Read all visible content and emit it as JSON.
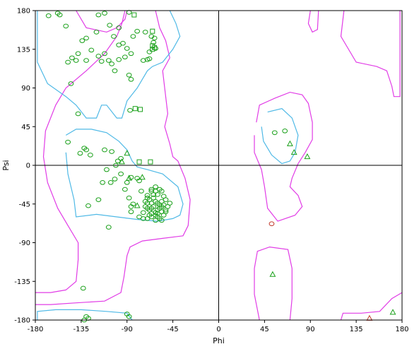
{
  "chart_data": {
    "type": "scatter",
    "title": "",
    "xlabel": "Phi",
    "ylabel": "Psi",
    "xlim": [
      -180,
      180
    ],
    "ylim": [
      -180,
      180
    ],
    "xticks": [
      -180,
      -135,
      -90,
      -45,
      0,
      45,
      90,
      135,
      180
    ],
    "yticks": [
      -180,
      -135,
      -90,
      -45,
      0,
      45,
      90,
      135,
      180
    ],
    "zero_lines": true,
    "colors": {
      "favored_contour": "#4fb9e6",
      "allowed_contour": "#e13ce6",
      "general": "#1aa01a",
      "outlier": "#c0392b",
      "axis": "#000000"
    },
    "contours": {
      "favored": [
        [
          [
            -178,
            180
          ],
          [
            -178,
            120
          ],
          [
            -168,
            95
          ],
          [
            -150,
            80
          ],
          [
            -140,
            70
          ],
          [
            -130,
            55
          ],
          [
            -120,
            55
          ],
          [
            -115,
            70
          ],
          [
            -110,
            70
          ],
          [
            -100,
            55
          ],
          [
            -95,
            55
          ],
          [
            -90,
            75
          ],
          [
            -80,
            90
          ],
          [
            -75,
            100
          ],
          [
            -70,
            110
          ],
          [
            -65,
            115
          ],
          [
            -55,
            120
          ],
          [
            -45,
            135
          ],
          [
            -38,
            150
          ],
          [
            -42,
            165
          ],
          [
            -48,
            180
          ]
        ],
        [
          [
            -150,
            35
          ],
          [
            -140,
            42
          ],
          [
            -125,
            42
          ],
          [
            -110,
            38
          ],
          [
            -98,
            28
          ],
          [
            -90,
            18
          ],
          [
            -85,
            5
          ],
          [
            -80,
            -2
          ],
          [
            -70,
            -5
          ],
          [
            -55,
            -10
          ],
          [
            -40,
            -25
          ],
          [
            -35,
            -45
          ],
          [
            -38,
            -58
          ],
          [
            -45,
            -62
          ],
          [
            -60,
            -65
          ],
          [
            -80,
            -63
          ],
          [
            -100,
            -60
          ],
          [
            -120,
            -57
          ],
          [
            -140,
            -60
          ],
          [
            -142,
            -40
          ],
          [
            -148,
            -10
          ],
          [
            -150,
            15
          ]
        ],
        [
          [
            -178,
            -180
          ],
          [
            -178,
            -170
          ],
          [
            -160,
            -168
          ],
          [
            -135,
            -168
          ],
          [
            -110,
            -170
          ],
          [
            -90,
            -172
          ],
          [
            -85,
            -180
          ]
        ],
        [
          [
            48,
            62
          ],
          [
            62,
            66
          ],
          [
            72,
            55
          ],
          [
            78,
            35
          ],
          [
            75,
            15
          ],
          [
            70,
            5
          ],
          [
            62,
            2
          ],
          [
            52,
            12
          ],
          [
            44,
            28
          ],
          [
            42,
            45
          ]
        ]
      ],
      "allowed": [
        [
          [
            -140,
            180
          ],
          [
            -130,
            160
          ],
          [
            -110,
            155
          ],
          [
            -100,
            160
          ],
          [
            -92,
            170
          ],
          [
            -90,
            180
          ]
        ],
        [
          [
            -180,
            -148
          ],
          [
            -165,
            -148
          ],
          [
            -150,
            -145
          ],
          [
            -140,
            -135
          ],
          [
            -138,
            -110
          ],
          [
            -138,
            -90
          ],
          [
            -148,
            -70
          ],
          [
            -158,
            -50
          ],
          [
            -168,
            -20
          ],
          [
            -172,
            10
          ],
          [
            -170,
            40
          ],
          [
            -160,
            70
          ],
          [
            -150,
            90
          ],
          [
            -130,
            110
          ],
          [
            -112,
            130
          ],
          [
            -100,
            150
          ],
          [
            -95,
            165
          ],
          [
            -92,
            180
          ]
        ],
        [
          [
            -62,
            180
          ],
          [
            -58,
            160
          ],
          [
            -52,
            145
          ],
          [
            -48,
            125
          ],
          [
            -55,
            110
          ],
          [
            -52,
            80
          ],
          [
            -50,
            60
          ],
          [
            -53,
            45
          ],
          [
            -48,
            25
          ],
          [
            -45,
            10
          ],
          [
            -40,
            5
          ],
          [
            -33,
            -15
          ],
          [
            -28,
            -40
          ],
          [
            -30,
            -70
          ],
          [
            -35,
            -82
          ],
          [
            -55,
            -85
          ],
          [
            -75,
            -88
          ],
          [
            -87,
            -95
          ],
          [
            -90,
            -105
          ],
          [
            -93,
            -130
          ],
          [
            -96,
            -148
          ],
          [
            -112,
            -158
          ],
          [
            -140,
            -160
          ],
          [
            -165,
            -162
          ],
          [
            -180,
            -162
          ]
        ],
        [
          [
            37,
            50
          ],
          [
            40,
            70
          ],
          [
            55,
            78
          ],
          [
            70,
            85
          ],
          [
            82,
            82
          ],
          [
            88,
            72
          ],
          [
            92,
            50
          ],
          [
            92,
            30
          ],
          [
            85,
            15
          ],
          [
            78,
            2
          ],
          [
            72,
            -15
          ],
          [
            70,
            -25
          ],
          [
            78,
            -35
          ],
          [
            82,
            -48
          ],
          [
            75,
            -58
          ],
          [
            58,
            -65
          ],
          [
            48,
            -50
          ],
          [
            45,
            -25
          ],
          [
            42,
            -5
          ],
          [
            35,
            15
          ],
          [
            35,
            35
          ]
        ],
        [
          [
            40,
            -180
          ],
          [
            35,
            -150
          ],
          [
            35,
            -120
          ],
          [
            38,
            -100
          ],
          [
            50,
            -95
          ],
          [
            68,
            -98
          ],
          [
            72,
            -120
          ],
          [
            72,
            -155
          ],
          [
            70,
            -180
          ]
        ],
        [
          [
            90,
            180
          ],
          [
            88,
            165
          ],
          [
            92,
            155
          ],
          [
            97,
            158
          ],
          [
            98,
            180
          ]
        ],
        [
          [
            123,
            180
          ],
          [
            120,
            150
          ],
          [
            135,
            120
          ],
          [
            155,
            115
          ],
          [
            165,
            110
          ],
          [
            170,
            92
          ],
          [
            172,
            80
          ],
          [
            178,
            80
          ],
          [
            178,
            180
          ]
        ],
        [
          [
            120,
            -180
          ],
          [
            122,
            -172
          ],
          [
            140,
            -172
          ],
          [
            158,
            -170
          ],
          [
            170,
            -155
          ],
          [
            180,
            -148
          ]
        ]
      ]
    },
    "series": [
      {
        "name": "",
        "marker": "circle",
        "color": "#1aa01a",
        "points": [
          [
            -158,
            177
          ],
          [
            -156,
            175
          ],
          [
            -167,
            174
          ],
          [
            -150,
            162
          ],
          [
            -118,
            175
          ],
          [
            -112,
            177
          ],
          [
            -98,
            160
          ],
          [
            -88,
            178
          ],
          [
            -72,
            155
          ],
          [
            -80,
            156
          ],
          [
            -66,
            150
          ],
          [
            -63,
            148
          ],
          [
            -64,
            143
          ],
          [
            -62,
            136
          ],
          [
            -68,
            132
          ],
          [
            -68,
            124
          ],
          [
            -70,
            123
          ],
          [
            -74,
            122
          ],
          [
            -92,
            126
          ],
          [
            -105,
            118
          ],
          [
            -108,
            122
          ],
          [
            -112,
            130
          ],
          [
            -118,
            127
          ],
          [
            -125,
            134
          ],
          [
            -138,
            130
          ],
          [
            -134,
            145
          ],
          [
            -130,
            148
          ],
          [
            -120,
            155
          ],
          [
            -107,
            163
          ],
          [
            -103,
            150
          ],
          [
            -98,
            140
          ],
          [
            -94,
            142
          ],
          [
            -90,
            136
          ],
          [
            -84,
            150
          ],
          [
            -86,
            130
          ],
          [
            -88,
            105
          ],
          [
            -86,
            100
          ],
          [
            -98,
            123
          ],
          [
            -102,
            110
          ],
          [
            -115,
            121
          ],
          [
            -130,
            122
          ],
          [
            -140,
            122
          ],
          [
            -144,
            125
          ],
          [
            -148,
            120
          ],
          [
            -138,
            60
          ],
          [
            -145,
            95
          ],
          [
            -148,
            27
          ],
          [
            -136,
            14
          ],
          [
            -132,
            20
          ],
          [
            -130,
            18
          ],
          [
            -126,
            12
          ],
          [
            -112,
            18
          ],
          [
            -105,
            16
          ],
          [
            -99,
            5
          ],
          [
            -101,
            0
          ],
          [
            -96,
            8
          ],
          [
            -110,
            -5
          ],
          [
            -114,
            -20
          ],
          [
            -118,
            -40
          ],
          [
            -128,
            -47
          ],
          [
            -106,
            -20
          ],
          [
            -102,
            -16
          ],
          [
            -96,
            -10
          ],
          [
            -92,
            -28
          ],
          [
            -88,
            -38
          ],
          [
            -86,
            -48
          ],
          [
            -86,
            -54
          ],
          [
            -78,
            -60
          ],
          [
            -74,
            -62
          ],
          [
            -90,
            -20
          ],
          [
            -86,
            -14
          ],
          [
            -80,
            -15
          ],
          [
            -78,
            -18
          ],
          [
            -76,
            -30
          ],
          [
            -84,
            -45
          ],
          [
            -70,
            -35
          ],
          [
            -66,
            -30
          ],
          [
            -62,
            -25
          ],
          [
            -58,
            -28
          ],
          [
            -56,
            -30
          ],
          [
            -64,
            -38
          ],
          [
            -62,
            -42
          ],
          [
            -60,
            -44
          ],
          [
            -58,
            -46
          ],
          [
            -56,
            -48
          ],
          [
            -60,
            -52
          ],
          [
            -62,
            -55
          ],
          [
            -64,
            -48
          ],
          [
            -66,
            -44
          ],
          [
            -68,
            -40
          ],
          [
            -70,
            -38
          ],
          [
            -72,
            -42
          ],
          [
            -70,
            -50
          ],
          [
            -68,
            -52
          ],
          [
            -66,
            -56
          ],
          [
            -62,
            -58
          ],
          [
            -60,
            -60
          ],
          [
            -58,
            -62
          ],
          [
            -56,
            -64
          ],
          [
            -54,
            -58
          ],
          [
            -52,
            -54
          ],
          [
            -50,
            -48
          ],
          [
            -48,
            -44
          ],
          [
            -52,
            -40
          ],
          [
            -54,
            -36
          ],
          [
            -56,
            -42
          ],
          [
            -60,
            -34
          ],
          [
            -64,
            -34
          ],
          [
            -66,
            -50
          ],
          [
            -70,
            -44
          ],
          [
            -72,
            -48
          ],
          [
            -74,
            -55
          ],
          [
            -60,
            -56
          ],
          [
            -58,
            -50
          ],
          [
            -62,
            -64
          ],
          [
            -66,
            -60
          ],
          [
            -68,
            -58
          ],
          [
            -70,
            -62
          ],
          [
            -56,
            -54
          ],
          [
            -54,
            -46
          ],
          [
            -52,
            -52
          ],
          [
            -62,
            -30
          ],
          [
            -66,
            -28
          ],
          [
            -108,
            -72
          ],
          [
            -87,
            64
          ],
          [
            -133,
            -143
          ],
          [
            -132,
            -180
          ],
          [
            -90,
            -173
          ],
          [
            -88,
            -176
          ],
          [
            -130,
            -176
          ],
          [
            -128,
            -178
          ],
          [
            55,
            38
          ],
          [
            65,
            40
          ]
        ]
      },
      {
        "name": "",
        "marker": "square",
        "color": "#1aa01a",
        "points": [
          [
            -83,
            175
          ],
          [
            -65,
            139
          ],
          [
            -77,
            65
          ],
          [
            -63,
            137
          ],
          [
            -65,
            135
          ],
          [
            -82,
            66
          ],
          [
            -67,
            4
          ],
          [
            -78,
            4
          ],
          [
            -65,
            156
          ]
        ]
      },
      {
        "name": "",
        "marker": "triangle",
        "color": "#1aa01a",
        "points": [
          [
            -90,
            14
          ],
          [
            -95,
            4
          ],
          [
            -75,
            -14
          ],
          [
            -88,
            -15
          ],
          [
            -80,
            -47
          ],
          [
            70,
            25
          ],
          [
            74,
            15
          ],
          [
            87,
            10
          ],
          [
            53,
            -127
          ],
          [
            171,
            -171
          ]
        ]
      },
      {
        "name": "",
        "marker": "circle",
        "color": "#c0392b",
        "points": [
          [
            52,
            -68
          ]
        ]
      },
      {
        "name": "",
        "marker": "triangle",
        "color": "#c0392b",
        "points": [
          [
            148,
            -178
          ]
        ]
      }
    ]
  }
}
